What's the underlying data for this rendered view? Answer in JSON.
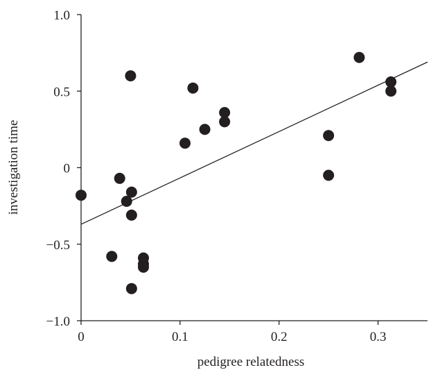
{
  "chart_data": {
    "type": "scatter",
    "title": "",
    "xlabel": "pedigree relatedness",
    "ylabel": "investigation time",
    "xlim": [
      0,
      0.35
    ],
    "ylim": [
      -1.0,
      1.0
    ],
    "x_ticks": [
      {
        "value": 0,
        "label": "0"
      },
      {
        "value": 0.1,
        "label": "0.1"
      },
      {
        "value": 0.2,
        "label": "0.2"
      },
      {
        "value": 0.3,
        "label": "0.3"
      }
    ],
    "y_ticks": [
      {
        "value": 1.0,
        "label": "1.0"
      },
      {
        "value": 0.5,
        "label": "0.5"
      },
      {
        "value": 0,
        "label": "0"
      },
      {
        "value": -0.5,
        "label": "−0.5"
      },
      {
        "value": -1.0,
        "label": "−1.0"
      }
    ],
    "grid": false,
    "legend": "none",
    "points": [
      {
        "x": 0.0,
        "y": -0.18
      },
      {
        "x": 0.031,
        "y": -0.58
      },
      {
        "x": 0.039,
        "y": -0.07
      },
      {
        "x": 0.046,
        "y": -0.22
      },
      {
        "x": 0.05,
        "y": 0.6
      },
      {
        "x": 0.051,
        "y": -0.16
      },
      {
        "x": 0.051,
        "y": -0.31
      },
      {
        "x": 0.051,
        "y": -0.79
      },
      {
        "x": 0.063,
        "y": -0.59
      },
      {
        "x": 0.063,
        "y": -0.63
      },
      {
        "x": 0.063,
        "y": -0.65
      },
      {
        "x": 0.105,
        "y": 0.16
      },
      {
        "x": 0.113,
        "y": 0.52
      },
      {
        "x": 0.125,
        "y": 0.25
      },
      {
        "x": 0.145,
        "y": 0.36
      },
      {
        "x": 0.145,
        "y": 0.3
      },
      {
        "x": 0.25,
        "y": 0.21
      },
      {
        "x": 0.25,
        "y": -0.05
      },
      {
        "x": 0.281,
        "y": 0.72
      },
      {
        "x": 0.313,
        "y": 0.56
      },
      {
        "x": 0.313,
        "y": 0.5
      }
    ],
    "fit_line": {
      "x": [
        0,
        0.35
      ],
      "y": [
        -0.37,
        0.69
      ]
    },
    "colors": {
      "marker": "#231f20",
      "axis": "#231f20",
      "line": "#231f20",
      "background": "#ffffff"
    }
  }
}
